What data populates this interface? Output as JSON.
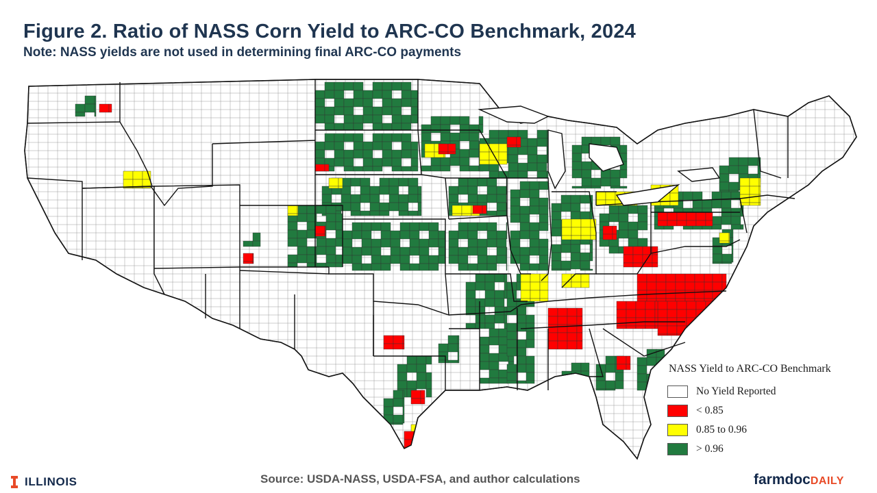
{
  "header": {
    "title": "Figure 2. Ratio of NASS Corn Yield to ARC-CO Benchmark, 2024",
    "subtitle": "Note: NASS yields are not used in determining final ARC-CO payments"
  },
  "legend": {
    "title": "NASS Yield to ARC-CO Benchmark",
    "items": [
      {
        "label": "No Yield Reported",
        "color": "#ffffff"
      },
      {
        "label": "< 0.85",
        "color": "#ff0000"
      },
      {
        "label": "0.85 to 0.96",
        "color": "#ffff00"
      },
      {
        "label": "> 0.96",
        "color": "#217a3f"
      }
    ]
  },
  "footer": {
    "org": "ILLINOIS",
    "source": "Source: USDA-NASS, USDA-FSA, and author calculations",
    "brand_main": "farmdoc",
    "brand_accent": "DAILY"
  },
  "colors": {
    "no_yield": "#ffffff",
    "low": "#ff0000",
    "mid": "#ffff00",
    "high": "#217a3f",
    "title": "#1f3550",
    "brand_orange": "#e84a27",
    "brand_blue": "#13294b"
  }
}
